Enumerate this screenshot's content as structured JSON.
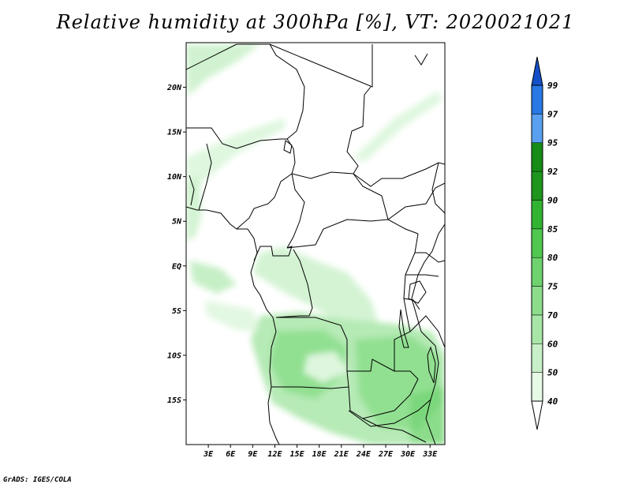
{
  "title": "Relative humidity at 300hPa [%], VT: 2020021021",
  "credit": "GrADS: IGES/COLA",
  "map": {
    "lat_labels": [
      "20N",
      "15N",
      "10N",
      "5N",
      "EQ",
      "5S",
      "10S",
      "15S"
    ],
    "lat_values": [
      20,
      15,
      10,
      5,
      0,
      -5,
      -10,
      -15
    ],
    "lon_labels": [
      "3E",
      "6E",
      "9E",
      "12E",
      "15E",
      "18E",
      "21E",
      "24E",
      "27E",
      "30E",
      "33E"
    ],
    "lon_values": [
      3,
      6,
      9,
      12,
      15,
      18,
      21,
      24,
      27,
      30,
      33
    ],
    "extent": {
      "lon_min": 0,
      "lon_max": 35,
      "lat_min": -20,
      "lat_max": 25
    }
  },
  "colorbar": {
    "labels": [
      "40",
      "50",
      "60",
      "70",
      "75",
      "80",
      "85",
      "90",
      "92",
      "95",
      "97",
      "99"
    ],
    "colors": [
      "#ffffff",
      "#e6fae6",
      "#c8f0c8",
      "#a8e6a8",
      "#8cdc8c",
      "#6ed26e",
      "#50c850",
      "#32b432",
      "#1e961e",
      "#168c16",
      "#5aa0f0",
      "#2878e6",
      "#1450c8"
    ]
  },
  "colors": {
    "green_light": "#d6f5d6",
    "green_mid": "#aee8ae",
    "green_strong": "#86dc86",
    "border": "#000000"
  }
}
